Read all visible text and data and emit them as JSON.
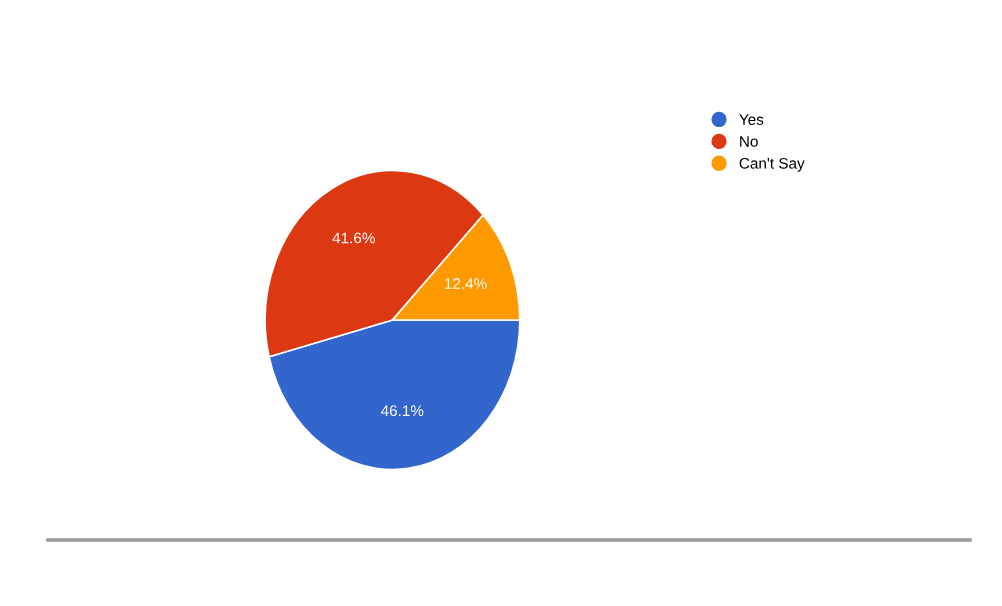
{
  "chart_data": {
    "type": "pie",
    "categories": [
      "Yes",
      "No",
      "Can't Say"
    ],
    "values": [
      46.1,
      41.6,
      12.4
    ],
    "colors": [
      "#3366cc",
      "#dc3912",
      "#ff9900"
    ],
    "value_labels": [
      "46.1%",
      "41.6%",
      "12.4%"
    ],
    "legend": "right"
  }
}
